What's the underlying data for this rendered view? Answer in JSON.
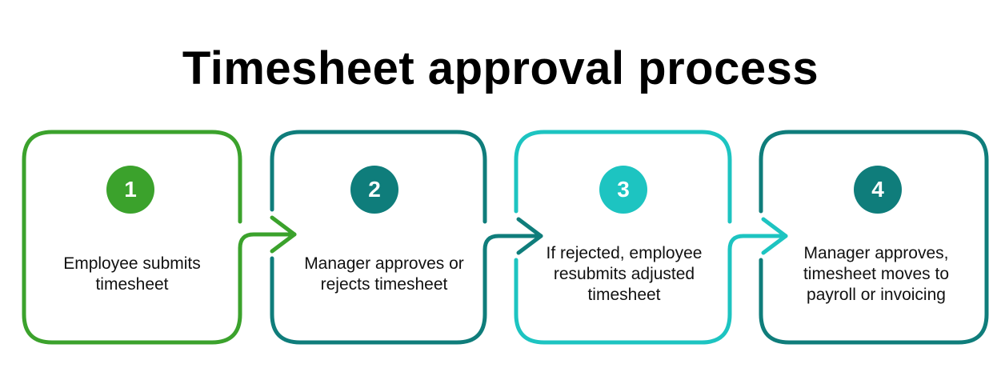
{
  "title": "Timesheet approval process",
  "colors": {
    "step1": "#3ba22c",
    "step2": "#0f7d7b",
    "step3": "#1dc4c1",
    "step4": "#0f7d7b"
  },
  "steps": [
    {
      "number": "1",
      "text": "Employee submits timesheet"
    },
    {
      "number": "2",
      "text": "Manager approves or rejects timesheet"
    },
    {
      "number": "3",
      "text": "If rejected, employee resubmits adjusted timesheet"
    },
    {
      "number": "4",
      "text": "Manager approves, timesheet moves to payroll or invoicing"
    }
  ]
}
